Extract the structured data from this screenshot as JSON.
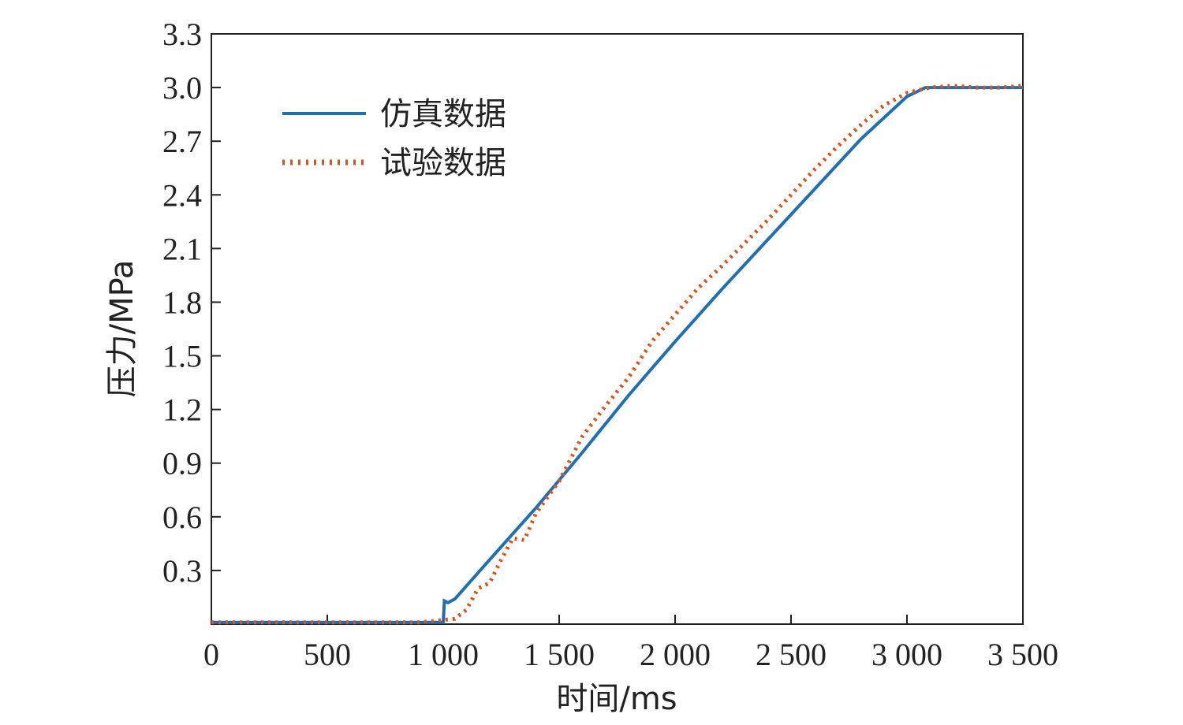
{
  "chart_data": {
    "type": "line",
    "title": "",
    "xlabel": "时间/ms",
    "ylabel": "压力/MPa",
    "xlim": [
      0,
      3500
    ],
    "ylim": [
      0,
      3.3
    ],
    "x_ticks": [
      0,
      500,
      1000,
      1500,
      2000,
      2500,
      3000,
      3500
    ],
    "x_tick_labels": [
      "0",
      "500",
      "1 000",
      "1 500",
      "2 000",
      "2 500",
      "3 000",
      "3 500"
    ],
    "y_ticks": [
      0.3,
      0.6,
      0.9,
      1.2,
      1.5,
      1.8,
      2.1,
      2.4,
      2.7,
      3.0,
      3.3
    ],
    "y_tick_labels": [
      "0.3",
      "0.6",
      "0.9",
      "1.2",
      "1.5",
      "1.8",
      "2.1",
      "2.4",
      "2.7",
      "3.0",
      "3.3"
    ],
    "grid": false,
    "legend_position": "top-left",
    "series": [
      {
        "name": "仿真数据",
        "color": "#1f6fb4",
        "style": "solid",
        "x": [
          0,
          1000,
          1005,
          1020,
          1050,
          1200,
          1400,
          1600,
          1800,
          2000,
          2200,
          2400,
          2600,
          2800,
          3000,
          3080,
          3200,
          3500
        ],
        "y": [
          0.01,
          0.01,
          0.13,
          0.12,
          0.14,
          0.36,
          0.65,
          0.96,
          1.28,
          1.58,
          1.87,
          2.15,
          2.43,
          2.71,
          2.95,
          3.0,
          3.0,
          3.0
        ]
      },
      {
        "name": "试验数据",
        "color": "#d9541a",
        "style": "dotted",
        "x": [
          0,
          500,
          900,
          1050,
          1100,
          1150,
          1200,
          1250,
          1300,
          1350,
          1400,
          1500,
          1600,
          1700,
          1800,
          1900,
          2000,
          2100,
          2200,
          2300,
          2400,
          2500,
          2600,
          2700,
          2800,
          2900,
          3000,
          3100,
          3200,
          3300,
          3400,
          3500
        ],
        "y": [
          0.01,
          0.01,
          0.01,
          0.03,
          0.08,
          0.2,
          0.23,
          0.36,
          0.48,
          0.47,
          0.62,
          0.8,
          1.05,
          1.22,
          1.38,
          1.58,
          1.73,
          1.88,
          2.0,
          2.13,
          2.26,
          2.4,
          2.54,
          2.67,
          2.79,
          2.9,
          2.97,
          3.0,
          3.01,
          3.0,
          3.0,
          3.01
        ]
      }
    ]
  }
}
